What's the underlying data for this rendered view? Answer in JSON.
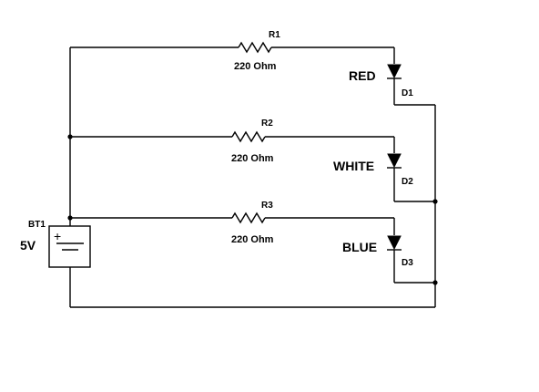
{
  "battery": {
    "ref": "BT1",
    "value": "5V"
  },
  "branches": [
    {
      "resistor_ref": "R1",
      "resistor_value": "220 Ohm",
      "diode_ref": "D1",
      "color_label": "RED"
    },
    {
      "resistor_ref": "R2",
      "resistor_value": "220 Ohm",
      "diode_ref": "D2",
      "color_label": "WHITE"
    },
    {
      "resistor_ref": "R3",
      "resistor_value": "220 Ohm",
      "diode_ref": "D3",
      "color_label": "BLUE"
    }
  ],
  "battery_symbols": {
    "plus": "+"
  }
}
